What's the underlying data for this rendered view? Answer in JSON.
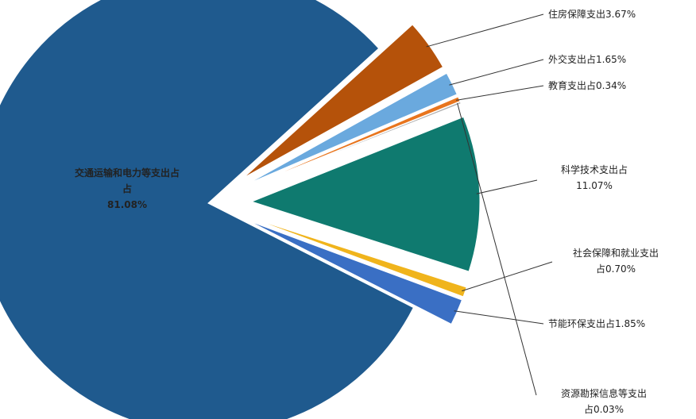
{
  "chart_data": {
    "type": "pie",
    "categories": [
      "交通运输和电力等支出占",
      "住房保障支出",
      "外交支出",
      "教育支出",
      "资源勘探信息等支出",
      "科学技术支出",
      "社会保障和就业支出",
      "节能环保支出"
    ],
    "values": [
      81.08,
      3.67,
      1.65,
      0.34,
      0.03,
      11.07,
      0.7,
      1.85
    ],
    "colors": [
      "#1f5a8e",
      "#b5520a",
      "#6aa9de",
      "#e8751e",
      "#b0b0b0",
      "#0f7a6f",
      "#f0b41c",
      "#3a6fc4"
    ],
    "labels": [
      [
        "交通运输和电力等支出占",
        "占",
        "81.08%"
      ],
      [
        "住房保障支出3.67%"
      ],
      [
        "外交支出占1.65%"
      ],
      [
        "教育支出占0.34%"
      ],
      [],
      [
        "科学技术支出占",
        "11.07%"
      ],
      [
        "社会保障和就业支出",
        "占0.70%"
      ],
      [
        "节能环保支出占1.85%"
      ]
    ],
    "extra_labels": [
      [
        "资源勘探信息等支出",
        "占0.03%"
      ]
    ],
    "units": "%"
  }
}
